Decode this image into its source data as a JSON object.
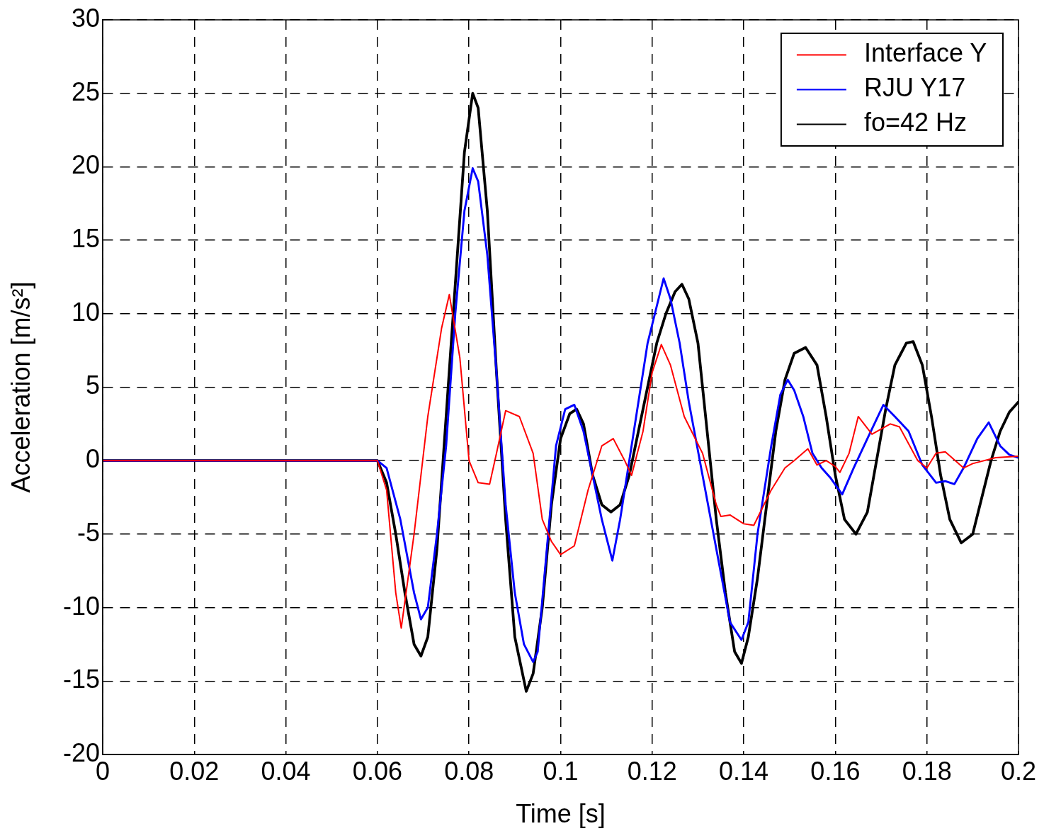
{
  "chart_data": {
    "type": "line",
    "xlabel": "Time [s]",
    "ylabel": "Acceleration [m/s²]",
    "xlim": [
      0,
      0.2
    ],
    "xticks": [
      0,
      0.02,
      0.04,
      0.06,
      0.08,
      0.1,
      0.12,
      0.14,
      0.16,
      0.18,
      0.2
    ],
    "ylim": [
      -20,
      30
    ],
    "yticks": [
      -20,
      -15,
      -10,
      -5,
      0,
      5,
      10,
      15,
      20,
      25,
      30
    ],
    "grid": true,
    "legend": "top right",
    "line_style": "solid",
    "marker": "none",
    "series": [
      {
        "name": "Interface Y",
        "color": "#ff0000",
        "x": [
          0,
          0.06,
          0.062,
          0.064,
          0.0652,
          0.068,
          0.071,
          0.074,
          0.0757,
          0.078,
          0.08,
          0.082,
          0.0845,
          0.086,
          0.088,
          0.091,
          0.094,
          0.096,
          0.098,
          0.1,
          0.103,
          0.106,
          0.109,
          0.1115,
          0.114,
          0.1155,
          0.118,
          0.12,
          0.122,
          0.124,
          0.127,
          0.131,
          0.134,
          0.135,
          0.137,
          0.14,
          0.1422,
          0.146,
          0.149,
          0.151,
          0.154,
          0.156,
          0.158,
          0.16,
          0.161,
          0.163,
          0.165,
          0.168,
          0.172,
          0.174,
          0.178,
          0.18,
          0.182,
          0.184,
          0.188,
          0.19,
          0.195,
          0.2
        ],
        "values": [
          0,
          0,
          -2,
          -9,
          -11.4,
          -5,
          3,
          9,
          11.3,
          7,
          0,
          -1.5,
          -1.6,
          0.5,
          3.4,
          3,
          0.5,
          -4,
          -5.5,
          -6.4,
          -5.8,
          -2,
          1,
          1.5,
          0,
          -1,
          2,
          6,
          7.9,
          6.5,
          3,
          0.5,
          -3,
          -3.8,
          -3.7,
          -4.3,
          -4.4,
          -2,
          -0.5,
          0,
          0.8,
          -0.3,
          0,
          -0.4,
          -0.8,
          0.5,
          3,
          1.8,
          2.5,
          2.3,
          0,
          -0.5,
          0.5,
          0.6,
          -0.5,
          -0.2,
          0.2,
          0.3
        ]
      },
      {
        "name": "RJU Y17",
        "color": "#0000ff",
        "x": [
          0,
          0.06,
          0.062,
          0.065,
          0.068,
          0.0695,
          0.071,
          0.073,
          0.075,
          0.077,
          0.079,
          0.0808,
          0.082,
          0.084,
          0.086,
          0.088,
          0.09,
          0.092,
          0.094,
          0.095,
          0.097,
          0.099,
          0.101,
          0.103,
          0.105,
          0.107,
          0.109,
          0.1113,
          0.113,
          0.116,
          0.119,
          0.1225,
          0.124,
          0.126,
          0.128,
          0.131,
          0.134,
          0.137,
          0.1395,
          0.141,
          0.143,
          0.146,
          0.148,
          0.1496,
          0.151,
          0.153,
          0.155,
          0.157,
          0.159,
          0.1615,
          0.164,
          0.167,
          0.1705,
          0.173,
          0.176,
          0.179,
          0.182,
          0.184,
          0.186,
          0.188,
          0.191,
          0.1935,
          0.196,
          0.198,
          0.2
        ],
        "values": [
          0,
          0,
          -0.5,
          -4,
          -9,
          -10.8,
          -10,
          -5,
          1,
          10,
          17,
          19.9,
          19,
          14,
          6,
          -3,
          -9,
          -12.5,
          -13.7,
          -13,
          -6,
          1,
          3.5,
          3.8,
          2,
          -1,
          -4,
          -6.8,
          -4,
          2,
          8,
          12.4,
          11,
          8,
          4,
          -1,
          -6,
          -11,
          -12.2,
          -11,
          -5,
          1,
          4.5,
          5.5,
          4.8,
          3,
          0.5,
          -0.5,
          -1.2,
          -2.3,
          -0.5,
          1.5,
          3.8,
          3,
          2,
          -0.3,
          -1.5,
          -1.4,
          -1.6,
          -0.5,
          1.5,
          2.6,
          1,
          0.4,
          0.2
        ]
      },
      {
        "name": "fo=42 Hz",
        "color": "#000000",
        "x": [
          0,
          0.06,
          0.062,
          0.064,
          0.066,
          0.068,
          0.0695,
          0.071,
          0.073,
          0.075,
          0.077,
          0.079,
          0.0808,
          0.082,
          0.084,
          0.086,
          0.088,
          0.09,
          0.0925,
          0.094,
          0.096,
          0.098,
          0.1,
          0.102,
          0.1035,
          0.105,
          0.107,
          0.109,
          0.111,
          0.113,
          0.115,
          0.117,
          0.119,
          0.121,
          0.123,
          0.125,
          0.1265,
          0.128,
          0.13,
          0.132,
          0.134,
          0.136,
          0.138,
          0.1395,
          0.141,
          0.143,
          0.145,
          0.147,
          0.149,
          0.151,
          0.1535,
          0.156,
          0.158,
          0.16,
          0.162,
          0.1645,
          0.167,
          0.169,
          0.171,
          0.173,
          0.1755,
          0.177,
          0.179,
          0.181,
          0.183,
          0.185,
          0.1875,
          0.19,
          0.192,
          0.194,
          0.196,
          0.198,
          0.2
        ],
        "values": [
          0,
          0,
          -1.5,
          -5,
          -9,
          -12.5,
          -13.3,
          -12,
          -6,
          3,
          12,
          21,
          25,
          24,
          17,
          6,
          -4,
          -12,
          -15.7,
          -14.5,
          -10,
          -3,
          1.5,
          3.2,
          3.5,
          2.5,
          -1,
          -3,
          -3.5,
          -3,
          -1,
          2,
          5,
          8,
          10,
          11.5,
          12,
          11,
          8,
          2,
          -4,
          -9,
          -13,
          -13.8,
          -12,
          -8,
          -3,
          2,
          5.5,
          7.3,
          7.7,
          6.5,
          3,
          -1,
          -4,
          -5,
          -3.5,
          0,
          3.5,
          6.5,
          8,
          8.1,
          6.5,
          3,
          -1,
          -4,
          -5.6,
          -5,
          -2.5,
          0,
          2,
          3.3,
          4
        ]
      }
    ]
  }
}
